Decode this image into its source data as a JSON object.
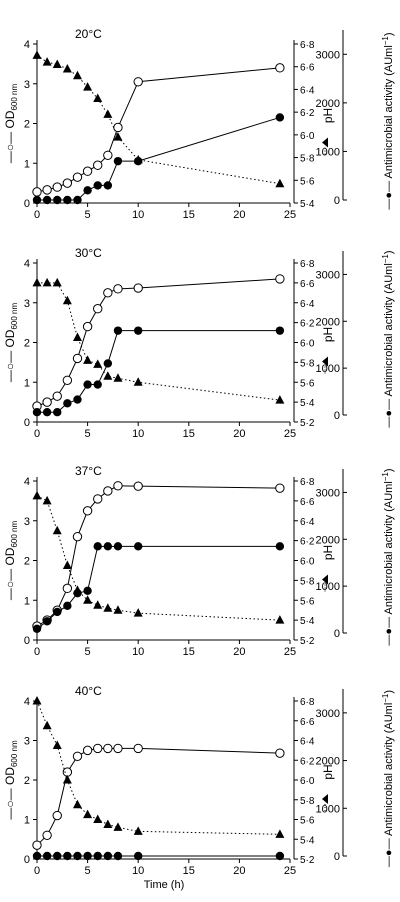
{
  "chart_data": [
    {
      "type": "line",
      "title": "20°C",
      "xlabel": "",
      "xlim": [
        0,
        25
      ],
      "xticks": [
        "0",
        "5",
        "10",
        "15",
        "20",
        "25"
      ],
      "ylabel_left": "OD",
      "ylabel_left_sub": "600 nm",
      "ylim_left": [
        0,
        4
      ],
      "yticks_left": [
        "0",
        "1",
        "2",
        "3",
        "4"
      ],
      "ylabel_ph": "pH",
      "ylim_ph": [
        5.4,
        6.8
      ],
      "yticks_ph": [
        "5·4",
        "5·6",
        "5·8",
        "6·0",
        "6·2",
        "6·4",
        "6·6",
        "6·8"
      ],
      "ylabel_act": "Antimicrobial activity (AUml",
      "ylabel_act_sup": "−1",
      "ylabel_act_end": ")",
      "ylim_act": [
        0,
        3500
      ],
      "yticks_act": [
        "0",
        "1000",
        "2000",
        "3000"
      ],
      "series": [
        {
          "key": "od",
          "axis": "left",
          "marker": "open-circle",
          "line": "solid",
          "x": [
            0,
            1,
            2,
            3,
            4,
            5,
            6,
            7,
            8,
            10,
            24
          ],
          "y": [
            0.28,
            0.33,
            0.4,
            0.5,
            0.65,
            0.8,
            0.95,
            1.2,
            1.9,
            3.05,
            3.4
          ]
        },
        {
          "key": "activity",
          "axis": "act",
          "marker": "filled-circle",
          "line": "solid",
          "x": [
            0,
            1,
            2,
            3,
            4,
            5,
            6,
            7,
            8,
            10,
            24
          ],
          "y": [
            0,
            0,
            0,
            0,
            0,
            200,
            300,
            300,
            800,
            800,
            1700
          ]
        },
        {
          "key": "ph",
          "axis": "ph",
          "marker": "filled-triangle",
          "line": "dotted",
          "x": [
            0,
            1,
            2,
            3,
            4,
            5,
            6,
            7,
            8,
            10,
            24
          ],
          "y": [
            6.7,
            6.64,
            6.62,
            6.58,
            6.52,
            6.42,
            6.32,
            6.18,
            5.98,
            5.78,
            5.57
          ]
        }
      ]
    },
    {
      "type": "line",
      "title": "30°C",
      "xlabel": "",
      "xlim": [
        0,
        25
      ],
      "xticks": [
        "0",
        "5",
        "10",
        "15",
        "20",
        "25"
      ],
      "ylabel_left": "OD",
      "ylabel_left_sub": "600 nm",
      "ylim_left": [
        0,
        4
      ],
      "yticks_left": [
        "0",
        "1",
        "2",
        "3",
        "4"
      ],
      "ylabel_ph": "pH",
      "ylim_ph": [
        5.2,
        6.8
      ],
      "yticks_ph": [
        "5·2",
        "5·4",
        "5·6",
        "5·8",
        "6·0",
        "6·2",
        "6·4",
        "6·6",
        "6·8"
      ],
      "ylabel_act": "Antimicrobial activity (AUml",
      "ylabel_act_sup": "−1",
      "ylabel_act_end": ")",
      "ylim_act": [
        0,
        3500
      ],
      "yticks_act": [
        "0",
        "1000",
        "2000",
        "3000"
      ],
      "series": [
        {
          "key": "od",
          "axis": "left",
          "marker": "open-circle",
          "line": "solid",
          "x": [
            0,
            1,
            2,
            3,
            4,
            5,
            6,
            7,
            8,
            10,
            24
          ],
          "y": [
            0.4,
            0.5,
            0.65,
            1.05,
            1.6,
            2.4,
            2.85,
            3.25,
            3.35,
            3.37,
            3.6
          ]
        },
        {
          "key": "activity",
          "axis": "act",
          "marker": "filled-circle",
          "line": "solid",
          "x": [
            0,
            1,
            2,
            3,
            4,
            5,
            6,
            7,
            8,
            10,
            24
          ],
          "y": [
            60,
            60,
            60,
            250,
            330,
            650,
            650,
            1100,
            1800,
            1800,
            1800
          ]
        },
        {
          "key": "ph",
          "axis": "ph",
          "marker": "filled-triangle",
          "line": "dotted",
          "x": [
            0,
            1,
            2,
            3,
            4,
            5,
            6,
            7,
            8,
            10,
            24
          ],
          "y": [
            6.6,
            6.6,
            6.6,
            6.42,
            6.05,
            5.82,
            5.78,
            5.66,
            5.64,
            5.6,
            5.42
          ]
        }
      ]
    },
    {
      "type": "line",
      "title": "37°C",
      "xlabel": "",
      "xlim": [
        0,
        25
      ],
      "xticks": [
        "0",
        "5",
        "10",
        "15",
        "20",
        "25"
      ],
      "ylabel_left": "OD",
      "ylabel_left_sub": "600 nm",
      "ylim_left": [
        0,
        4
      ],
      "yticks_left": [
        "0",
        "1",
        "2",
        "3",
        "4"
      ],
      "ylabel_ph": "pH",
      "ylim_ph": [
        5.2,
        6.8
      ],
      "yticks_ph": [
        "5·2",
        "5·4",
        "5·6",
        "5·8",
        "6·0",
        "6·2",
        "6·4",
        "6·6",
        "6·8"
      ],
      "ylabel_act": "Antimicrobial activity (AUml",
      "ylabel_act_sup": "−1",
      "ylabel_act_end": ")",
      "ylim_act": [
        0,
        3500
      ],
      "yticks_act": [
        "0",
        "1000",
        "2000",
        "3000"
      ],
      "series": [
        {
          "key": "od",
          "axis": "left",
          "marker": "open-circle",
          "line": "solid",
          "x": [
            0,
            1,
            2,
            3,
            4,
            5,
            6,
            7,
            8,
            10,
            24
          ],
          "y": [
            0.35,
            0.5,
            0.75,
            1.3,
            2.6,
            3.25,
            3.55,
            3.75,
            3.88,
            3.87,
            3.82
          ]
        },
        {
          "key": "activity",
          "axis": "act",
          "marker": "filled-circle",
          "line": "solid",
          "x": [
            0,
            1,
            2,
            3,
            4,
            5,
            6,
            7,
            8,
            10,
            24
          ],
          "y": [
            90,
            250,
            450,
            580,
            850,
            900,
            1850,
            1850,
            1850,
            1850,
            1850
          ]
        },
        {
          "key": "ph",
          "axis": "ph",
          "marker": "filled-triangle",
          "line": "dotted",
          "x": [
            0,
            1,
            2,
            3,
            4,
            5,
            6,
            7,
            8,
            10,
            24
          ],
          "y": [
            6.65,
            6.6,
            6.3,
            5.95,
            5.7,
            5.6,
            5.55,
            5.52,
            5.5,
            5.47,
            5.4
          ]
        }
      ]
    },
    {
      "type": "line",
      "title": "40°C",
      "xlabel": "Time (h)",
      "xlim": [
        0,
        25
      ],
      "xticks": [
        "0",
        "5",
        "10",
        "15",
        "20",
        "25"
      ],
      "ylabel_left": "OD",
      "ylabel_left_sub": "600 nm",
      "ylim_left": [
        0,
        4
      ],
      "yticks_left": [
        "0",
        "1",
        "2",
        "3",
        "4"
      ],
      "ylabel_ph": "pH",
      "ylim_ph": [
        5.2,
        6.8
      ],
      "yticks_ph": [
        "5·2",
        "5·4",
        "5·6",
        "5·8",
        "6·0",
        "6·2",
        "6·4",
        "6·6",
        "6·8"
      ],
      "ylabel_act": "Antimicrobial activity (AUml",
      "ylabel_act_sup": "−1",
      "ylabel_act_end": ")",
      "ylim_act": [
        0,
        3500
      ],
      "yticks_act": [
        "0",
        "1000",
        "2000",
        "3000"
      ],
      "series": [
        {
          "key": "od",
          "axis": "left",
          "marker": "open-circle",
          "line": "solid",
          "x": [
            0,
            1,
            2,
            3,
            4,
            5,
            6,
            7,
            8,
            10,
            24
          ],
          "y": [
            0.35,
            0.6,
            1.1,
            2.2,
            2.6,
            2.75,
            2.8,
            2.8,
            2.8,
            2.8,
            2.68
          ]
        },
        {
          "key": "activity",
          "axis": "act",
          "marker": "filled-circle",
          "line": "solid",
          "x": [
            0,
            1,
            2,
            3,
            4,
            5,
            6,
            7,
            8,
            10,
            24
          ],
          "y": [
            0,
            0,
            0,
            0,
            0,
            0,
            0,
            0,
            0,
            0,
            0
          ]
        },
        {
          "key": "ph",
          "axis": "ph",
          "marker": "filled-triangle",
          "line": "dotted",
          "x": [
            0,
            1,
            2,
            3,
            4,
            5,
            6,
            7,
            8,
            10,
            24
          ],
          "y": [
            6.8,
            6.55,
            6.35,
            6.0,
            5.75,
            5.65,
            5.6,
            5.55,
            5.52,
            5.48,
            5.45
          ]
        }
      ]
    }
  ]
}
